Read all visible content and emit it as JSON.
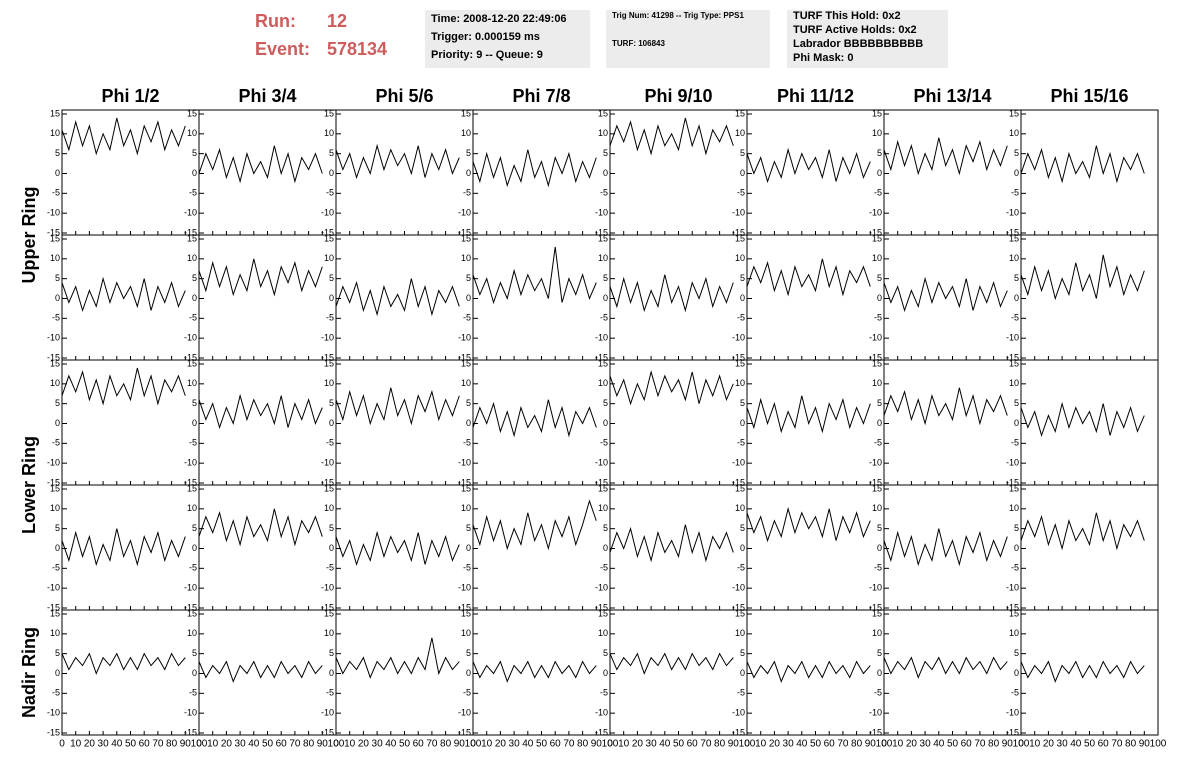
{
  "header": {
    "run_label": "Run:",
    "run": "12",
    "event_label": "Event:",
    "event": "578134",
    "boxes": [
      [
        "Time: 2008-12-20 22:49:06",
        "Trigger: 0.000159 ms",
        "Priority: 9 -- Queue: 9"
      ],
      [
        "Trig Num: 41298 -- Trig Type: PPS1",
        "TURF: 106843"
      ],
      [
        "TURF This Hold: 0x2",
        "TURF Active Holds: 0x2",
        "Labrador BBBBBBBBBB",
        "Phi Mask: 0"
      ]
    ]
  },
  "chart_data": {
    "type": "line",
    "columns": [
      "Phi 1/2",
      "Phi 3/4",
      "Phi 5/6",
      "Phi 7/8",
      "Phi 9/10",
      "Phi 11/12",
      "Phi 13/14",
      "Phi 15/16"
    ],
    "rings": [
      "Upper Ring",
      "Lower Ring",
      "Nadir Ring"
    ],
    "xlim": [
      0,
      100
    ],
    "ylim": [
      -15,
      15
    ],
    "xticks": [
      0,
      10,
      20,
      30,
      40,
      50,
      60,
      70,
      80,
      90,
      100
    ],
    "yticks": [
      -15,
      -10,
      -5,
      0,
      5,
      10,
      15
    ],
    "color": "#000000",
    "x": [
      0,
      5,
      10,
      15,
      20,
      25,
      30,
      35,
      40,
      45,
      50,
      55,
      60,
      65,
      70,
      75,
      80,
      85,
      90
    ],
    "series": [
      {
        "values": [
          11,
          6,
          13,
          7,
          12,
          5,
          10,
          6,
          14,
          7,
          11,
          5,
          12,
          8,
          13,
          6,
          11,
          7,
          12
        ]
      },
      {
        "values": [
          0,
          5,
          1,
          6,
          -1,
          4,
          -2,
          5,
          0,
          3,
          -1,
          7,
          0,
          5,
          -2,
          4,
          1,
          5,
          0
        ]
      },
      {
        "values": [
          6,
          1,
          5,
          -1,
          4,
          0,
          7,
          1,
          6,
          2,
          5,
          0,
          7,
          -1,
          5,
          1,
          6,
          0,
          4
        ]
      },
      {
        "values": [
          3,
          -2,
          5,
          -1,
          4,
          -3,
          2,
          -2,
          6,
          -1,
          3,
          -3,
          4,
          0,
          5,
          -2,
          3,
          -1,
          4
        ]
      },
      {
        "values": [
          7,
          12,
          8,
          13,
          6,
          11,
          5,
          12,
          7,
          10,
          6,
          14,
          7,
          12,
          5,
          11,
          8,
          12,
          7
        ]
      },
      {
        "values": [
          5,
          0,
          4,
          -2,
          3,
          -1,
          6,
          0,
          5,
          1,
          4,
          -1,
          6,
          -2,
          4,
          0,
          5,
          -1,
          3
        ]
      },
      {
        "values": [
          6,
          1,
          8,
          2,
          7,
          0,
          5,
          1,
          9,
          2,
          6,
          0,
          7,
          3,
          8,
          1,
          6,
          2,
          7
        ]
      },
      {
        "values": [
          0,
          5,
          1,
          6,
          -1,
          4,
          -2,
          5,
          0,
          3,
          -1,
          7,
          0,
          5,
          -2,
          4,
          1,
          5,
          0
        ]
      },
      {
        "values": [
          4,
          -1,
          3,
          -3,
          2,
          -2,
          5,
          -1,
          4,
          0,
          3,
          -2,
          5,
          -3,
          3,
          -1,
          4,
          -2,
          2
        ]
      },
      {
        "values": [
          7,
          2,
          9,
          3,
          8,
          1,
          6,
          2,
          10,
          3,
          7,
          1,
          8,
          4,
          9,
          2,
          7,
          3,
          8
        ]
      },
      {
        "values": [
          -2,
          3,
          -1,
          4,
          -3,
          2,
          -4,
          3,
          -2,
          1,
          -3,
          5,
          -2,
          3,
          -4,
          2,
          -1,
          3,
          -2
        ]
      },
      {
        "values": [
          6,
          1,
          5,
          -1,
          4,
          0,
          7,
          1,
          6,
          2,
          5,
          0,
          13,
          -1,
          5,
          1,
          6,
          0,
          4
        ]
      },
      {
        "values": [
          3,
          -2,
          5,
          -1,
          4,
          -3,
          2,
          -2,
          6,
          -1,
          3,
          -3,
          4,
          0,
          5,
          -2,
          3,
          -1,
          4
        ]
      },
      {
        "values": [
          3,
          8,
          4,
          9,
          2,
          7,
          1,
          8,
          3,
          6,
          2,
          10,
          3,
          8,
          1,
          7,
          4,
          8,
          3
        ]
      },
      {
        "values": [
          4,
          -1,
          3,
          -3,
          2,
          -2,
          5,
          -1,
          4,
          0,
          3,
          -2,
          5,
          -3,
          3,
          -1,
          4,
          -2,
          2
        ]
      },
      {
        "values": [
          6,
          1,
          8,
          2,
          7,
          0,
          5,
          1,
          9,
          2,
          6,
          0,
          11,
          3,
          8,
          1,
          6,
          2,
          7
        ]
      },
      {
        "values": [
          7,
          12,
          8,
          13,
          6,
          11,
          5,
          12,
          7,
          10,
          6,
          14,
          7,
          12,
          5,
          11,
          8,
          12,
          7
        ]
      },
      {
        "values": [
          6,
          1,
          5,
          -1,
          4,
          0,
          7,
          1,
          6,
          2,
          5,
          0,
          7,
          -1,
          5,
          1,
          6,
          0,
          4
        ]
      },
      {
        "values": [
          6,
          1,
          8,
          2,
          7,
          0,
          5,
          1,
          9,
          2,
          6,
          0,
          7,
          3,
          8,
          1,
          6,
          2,
          7
        ]
      },
      {
        "values": [
          -1,
          4,
          0,
          5,
          -2,
          3,
          -3,
          4,
          -1,
          2,
          -2,
          6,
          -1,
          4,
          -3,
          3,
          0,
          4,
          -1
        ]
      },
      {
        "values": [
          12,
          7,
          11,
          5,
          10,
          6,
          13,
          7,
          12,
          8,
          11,
          6,
          13,
          5,
          11,
          7,
          12,
          6,
          10
        ]
      },
      {
        "values": [
          4,
          -1,
          6,
          0,
          5,
          -2,
          3,
          -1,
          7,
          0,
          4,
          -2,
          5,
          1,
          6,
          -1,
          4,
          0,
          5
        ]
      },
      {
        "values": [
          2,
          7,
          3,
          8,
          1,
          6,
          0,
          7,
          2,
          5,
          1,
          9,
          2,
          7,
          0,
          6,
          3,
          7,
          2
        ]
      },
      {
        "values": [
          4,
          -1,
          3,
          -3,
          2,
          -2,
          5,
          -1,
          4,
          0,
          3,
          -2,
          5,
          -3,
          3,
          -1,
          4,
          -2,
          2
        ]
      },
      {
        "values": [
          2,
          -3,
          4,
          -2,
          3,
          -4,
          1,
          -3,
          5,
          -2,
          2,
          -4,
          3,
          -1,
          4,
          -3,
          2,
          -2,
          3
        ]
      },
      {
        "values": [
          3,
          8,
          4,
          9,
          2,
          7,
          1,
          8,
          3,
          6,
          2,
          10,
          3,
          8,
          1,
          7,
          4,
          8,
          3
        ]
      },
      {
        "values": [
          3,
          -2,
          2,
          -4,
          1,
          -3,
          4,
          -2,
          3,
          -1,
          2,
          -3,
          4,
          -4,
          2,
          -2,
          3,
          -3,
          1
        ]
      },
      {
        "values": [
          6,
          1,
          8,
          2,
          7,
          0,
          5,
          1,
          9,
          2,
          6,
          0,
          7,
          3,
          8,
          1,
          6,
          12,
          7
        ]
      },
      {
        "values": [
          -1,
          4,
          0,
          5,
          -2,
          3,
          -3,
          4,
          -1,
          2,
          -2,
          6,
          -1,
          4,
          -3,
          3,
          0,
          4,
          -1
        ]
      },
      {
        "values": [
          9,
          4,
          8,
          2,
          7,
          3,
          10,
          4,
          9,
          5,
          8,
          3,
          10,
          2,
          8,
          4,
          9,
          3,
          7
        ]
      },
      {
        "values": [
          2,
          -3,
          4,
          -2,
          3,
          -4,
          1,
          -3,
          5,
          -2,
          2,
          -4,
          3,
          -1,
          4,
          -3,
          2,
          -2,
          3
        ]
      },
      {
        "values": [
          2,
          7,
          3,
          8,
          1,
          6,
          0,
          7,
          2,
          5,
          1,
          9,
          2,
          7,
          0,
          6,
          3,
          7,
          2
        ]
      },
      {
        "values": [
          5,
          1,
          4,
          2,
          5,
          0,
          4,
          2,
          5,
          1,
          4,
          1,
          5,
          2,
          4,
          1,
          5,
          2,
          4
        ]
      },
      {
        "values": [
          3,
          -1,
          2,
          0,
          3,
          -2,
          2,
          0,
          3,
          -1,
          2,
          -1,
          3,
          0,
          2,
          -1,
          3,
          0,
          2
        ]
      },
      {
        "values": [
          4,
          0,
          3,
          1,
          4,
          -1,
          3,
          1,
          4,
          0,
          3,
          0,
          4,
          1,
          9,
          0,
          4,
          1,
          3
        ]
      },
      {
        "values": [
          3,
          -1,
          2,
          0,
          3,
          -2,
          2,
          0,
          3,
          -1,
          2,
          -1,
          3,
          0,
          2,
          -1,
          3,
          0,
          2
        ]
      },
      {
        "values": [
          5,
          1,
          4,
          2,
          5,
          0,
          4,
          2,
          5,
          1,
          4,
          1,
          5,
          2,
          4,
          1,
          5,
          2,
          4
        ]
      },
      {
        "values": [
          3,
          -1,
          2,
          0,
          3,
          -2,
          2,
          0,
          3,
          -1,
          2,
          -1,
          3,
          0,
          2,
          -1,
          3,
          0,
          2
        ]
      },
      {
        "values": [
          4,
          0,
          3,
          1,
          4,
          -1,
          3,
          1,
          4,
          0,
          3,
          0,
          4,
          1,
          3,
          0,
          4,
          1,
          3
        ]
      },
      {
        "values": [
          3,
          -1,
          2,
          0,
          3,
          -2,
          2,
          0,
          3,
          -1,
          2,
          -1,
          3,
          0,
          2,
          -1,
          3,
          0,
          2
        ]
      }
    ]
  }
}
